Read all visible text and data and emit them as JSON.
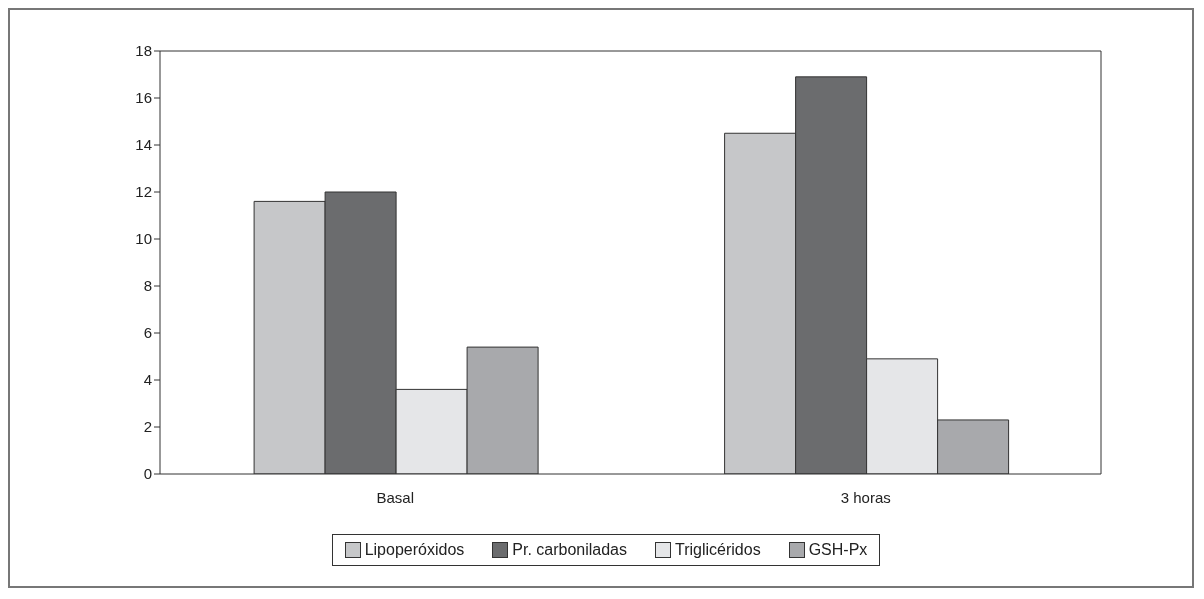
{
  "chart_data": {
    "type": "bar",
    "categories": [
      "Basal",
      "3 horas"
    ],
    "series": [
      {
        "name": "Lipoperóxidos",
        "color": "#c6c7c9",
        "values": [
          11.6,
          14.5
        ]
      },
      {
        "name": "Pr. carboniladas",
        "color": "#6b6c6e",
        "values": [
          12.0,
          16.9
        ]
      },
      {
        "name": "Triglicéridos",
        "color": "#e5e6e8",
        "values": [
          3.6,
          4.9
        ]
      },
      {
        "name": "GSH-Px",
        "color": "#a8a9ac",
        "values": [
          5.4,
          2.3
        ]
      }
    ],
    "ylim": [
      0,
      18
    ],
    "yticks": [
      0,
      2,
      4,
      6,
      8,
      10,
      12,
      14,
      16,
      18
    ],
    "grid": false,
    "legend": "bottom"
  }
}
